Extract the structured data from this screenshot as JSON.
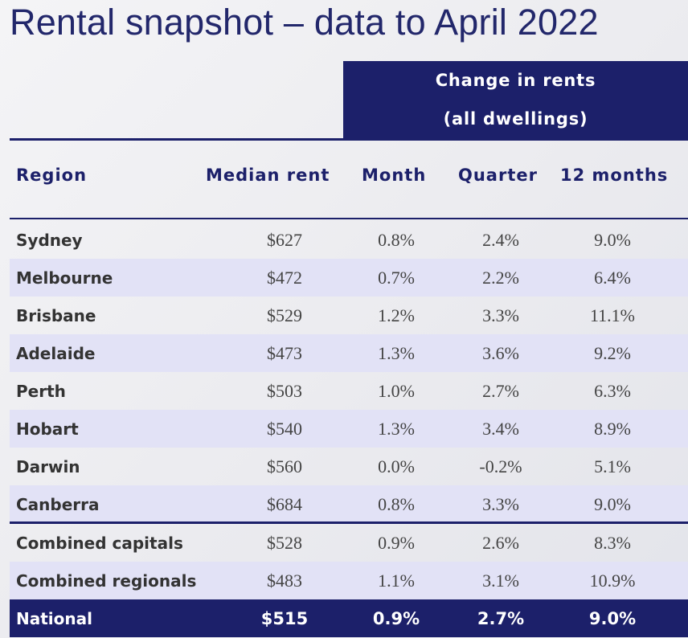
{
  "title": "Rental snapshot – data to April 2022",
  "change_header": {
    "line1": "Change in rents",
    "line2": "(all dwellings)"
  },
  "columns": {
    "region": "Region",
    "median": "Median rent",
    "month": "Month",
    "quarter": "Quarter",
    "months12": "12 months"
  },
  "rows": [
    {
      "region": "Sydney",
      "median": "$627",
      "month": "0.8%",
      "quarter": "2.4%",
      "months12": "9.0%"
    },
    {
      "region": "Melbourne",
      "median": "$472",
      "month": "0.7%",
      "quarter": "2.2%",
      "months12": "6.4%"
    },
    {
      "region": "Brisbane",
      "median": "$529",
      "month": "1.2%",
      "quarter": "3.3%",
      "months12": "11.1%"
    },
    {
      "region": "Adelaide",
      "median": "$473",
      "month": "1.3%",
      "quarter": "3.6%",
      "months12": "9.2%"
    },
    {
      "region": "Perth",
      "median": "$503",
      "month": "1.0%",
      "quarter": "2.7%",
      "months12": "6.3%"
    },
    {
      "region": "Hobart",
      "median": "$540",
      "month": "1.3%",
      "quarter": "3.4%",
      "months12": "8.9%"
    },
    {
      "region": "Darwin",
      "median": "$560",
      "month": "0.0%",
      "quarter": "-0.2%",
      "months12": "5.1%"
    },
    {
      "region": "Canberra",
      "median": "$684",
      "month": "0.8%",
      "quarter": "3.3%",
      "months12": "9.0%"
    },
    {
      "region": "Combined capitals",
      "median": "$528",
      "month": "0.9%",
      "quarter": "2.6%",
      "months12": "8.3%"
    },
    {
      "region": "Combined regionals",
      "median": "$483",
      "month": "1.1%",
      "quarter": "3.1%",
      "months12": "10.9%"
    },
    {
      "region": "National",
      "median": "$515",
      "month": "0.9%",
      "quarter": "2.7%",
      "months12": "9.0%"
    }
  ]
}
